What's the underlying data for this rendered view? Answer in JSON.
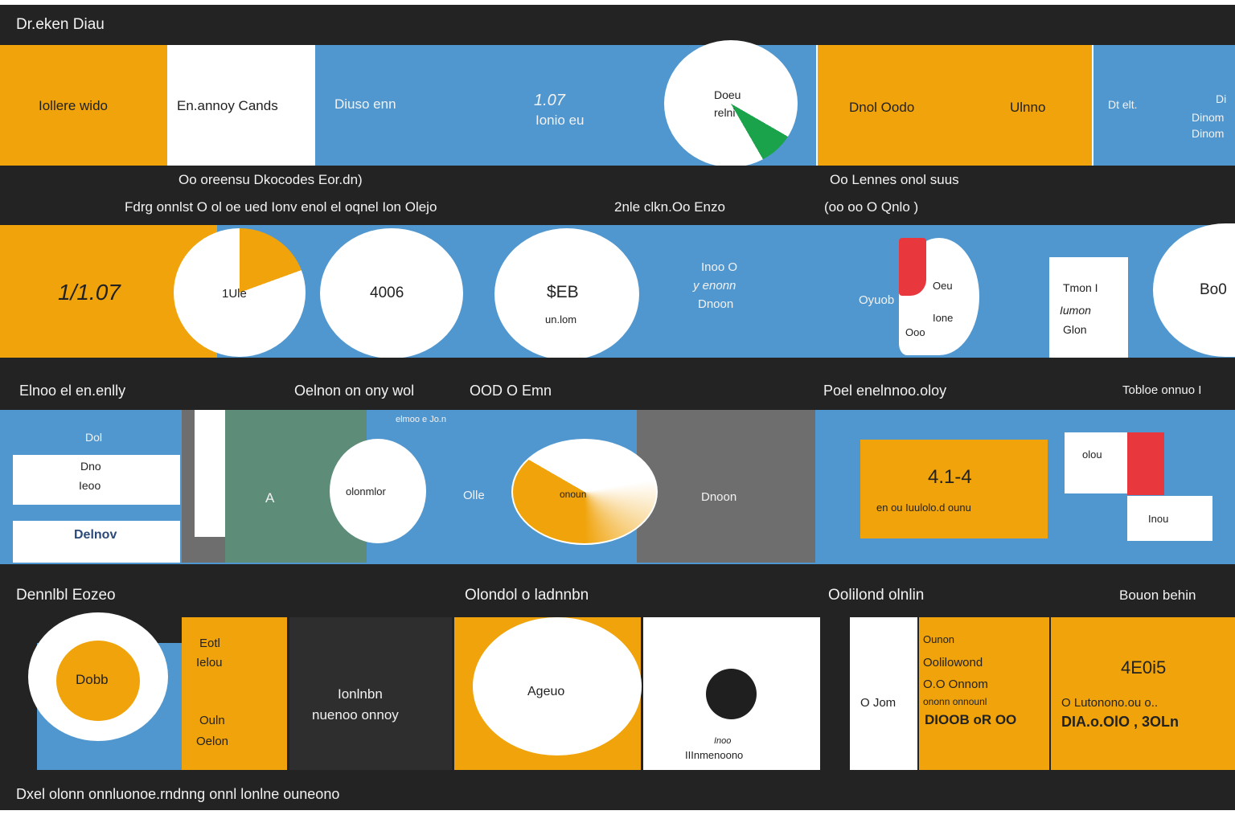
{
  "header": {
    "title": "Dr.eken Diau"
  },
  "row1": {
    "card1": "Iollere wido",
    "card2": "En.annoy Cands",
    "card3": "Diuso enn",
    "metric_value": "1.07",
    "metric_label": "Ionio eu",
    "circle_line1": "Doeu",
    "circle_line2": "relni",
    "card4": "Dnol Oodo",
    "card5": "Ulnno",
    "card6": "Dt elt.",
    "card7_lines": [
      "Di",
      "Dinom",
      "Dinom"
    ]
  },
  "band1": {
    "caption1": "Oo oreensu Dkocodes Eor.dn)",
    "caption2": "Oo Lennes onol suus",
    "line1": "Fdrg onnlst O ol oe ued Ionv enol el oqnel Ion Olejo",
    "line2": "2nle clkn.Oo Enzo",
    "line3": "(oo oo O Qnlo )"
  },
  "row2": {
    "big_value": "1/1.07",
    "pie_label": "1Ule",
    "circle2": "4006",
    "circle3_value": "$EB",
    "circle3_label": "un.lom",
    "text_lines": [
      "Inoo O",
      "y enonn",
      "Dnoon"
    ],
    "red_label": "Oyuob",
    "red_line1": "Oeu",
    "red_line2": "Ione",
    "red_line3": "Ooo",
    "card_lines": [
      "Tmon I",
      "Iumon",
      "Glon"
    ],
    "right_value": "Bo0"
  },
  "band2": {
    "label1": "Elnoo el en.enlly",
    "label2": "Oelnon on ony wol",
    "label3": "OOD O Emn",
    "label4": "Poel enelnnoo.oloy",
    "label5": "Tobloe onnuo I"
  },
  "row3": {
    "card_top": "Dol",
    "card_mid1": "Dno",
    "card_mid2": "Ieoo",
    "card_bottom": "Delnov",
    "letter": "A",
    "small_caption": "elmoo e Jo.n",
    "circle1": "olonmlor",
    "mid_label": "Olle",
    "pie_label": "onoun",
    "gray_label": "Dnoon",
    "orange_value": "4.1-4",
    "orange_label": "en ou Iuulolo.d ounu",
    "white_label": "olou",
    "white2_label": "Inou"
  },
  "band3": {
    "label1": "Dennlbl Eozeo",
    "label2": "Olondol o ladnnbn",
    "label3": "Oolilond olnlin",
    "label4": "Bouon behin"
  },
  "row4": {
    "circle_value": "Dobb",
    "orange1_lines": [
      "Eotl",
      "Ielou"
    ],
    "orange1_lines2": [
      "Ouln",
      "Oelon"
    ],
    "dark_lines": [
      "Ionlnbn",
      "nuenoo onnoy"
    ],
    "circle_label": "Ageuo",
    "white_small": "Inoo",
    "white_label": "IIInmenoono",
    "narrow_label": "O Jom",
    "orange2_lines": [
      "Ounon",
      "Oolilowond",
      "O.O Onnom",
      "ononn onnounl",
      "DIOOB oR OO"
    ],
    "orange3_value": "4E0i5",
    "orange3_line": "O Lutonono.ou o..",
    "orange3_big": "DIA.o.OlO , 3OLn"
  },
  "footer": {
    "text": "Dxel olonn onnluonoe.rndnng onnl lonlne ouneono"
  },
  "colors": {
    "dark": "#232323",
    "orange": "#f0a30a",
    "blue": "#5197cf",
    "green": "#1aa34a",
    "red": "#e8383d"
  }
}
